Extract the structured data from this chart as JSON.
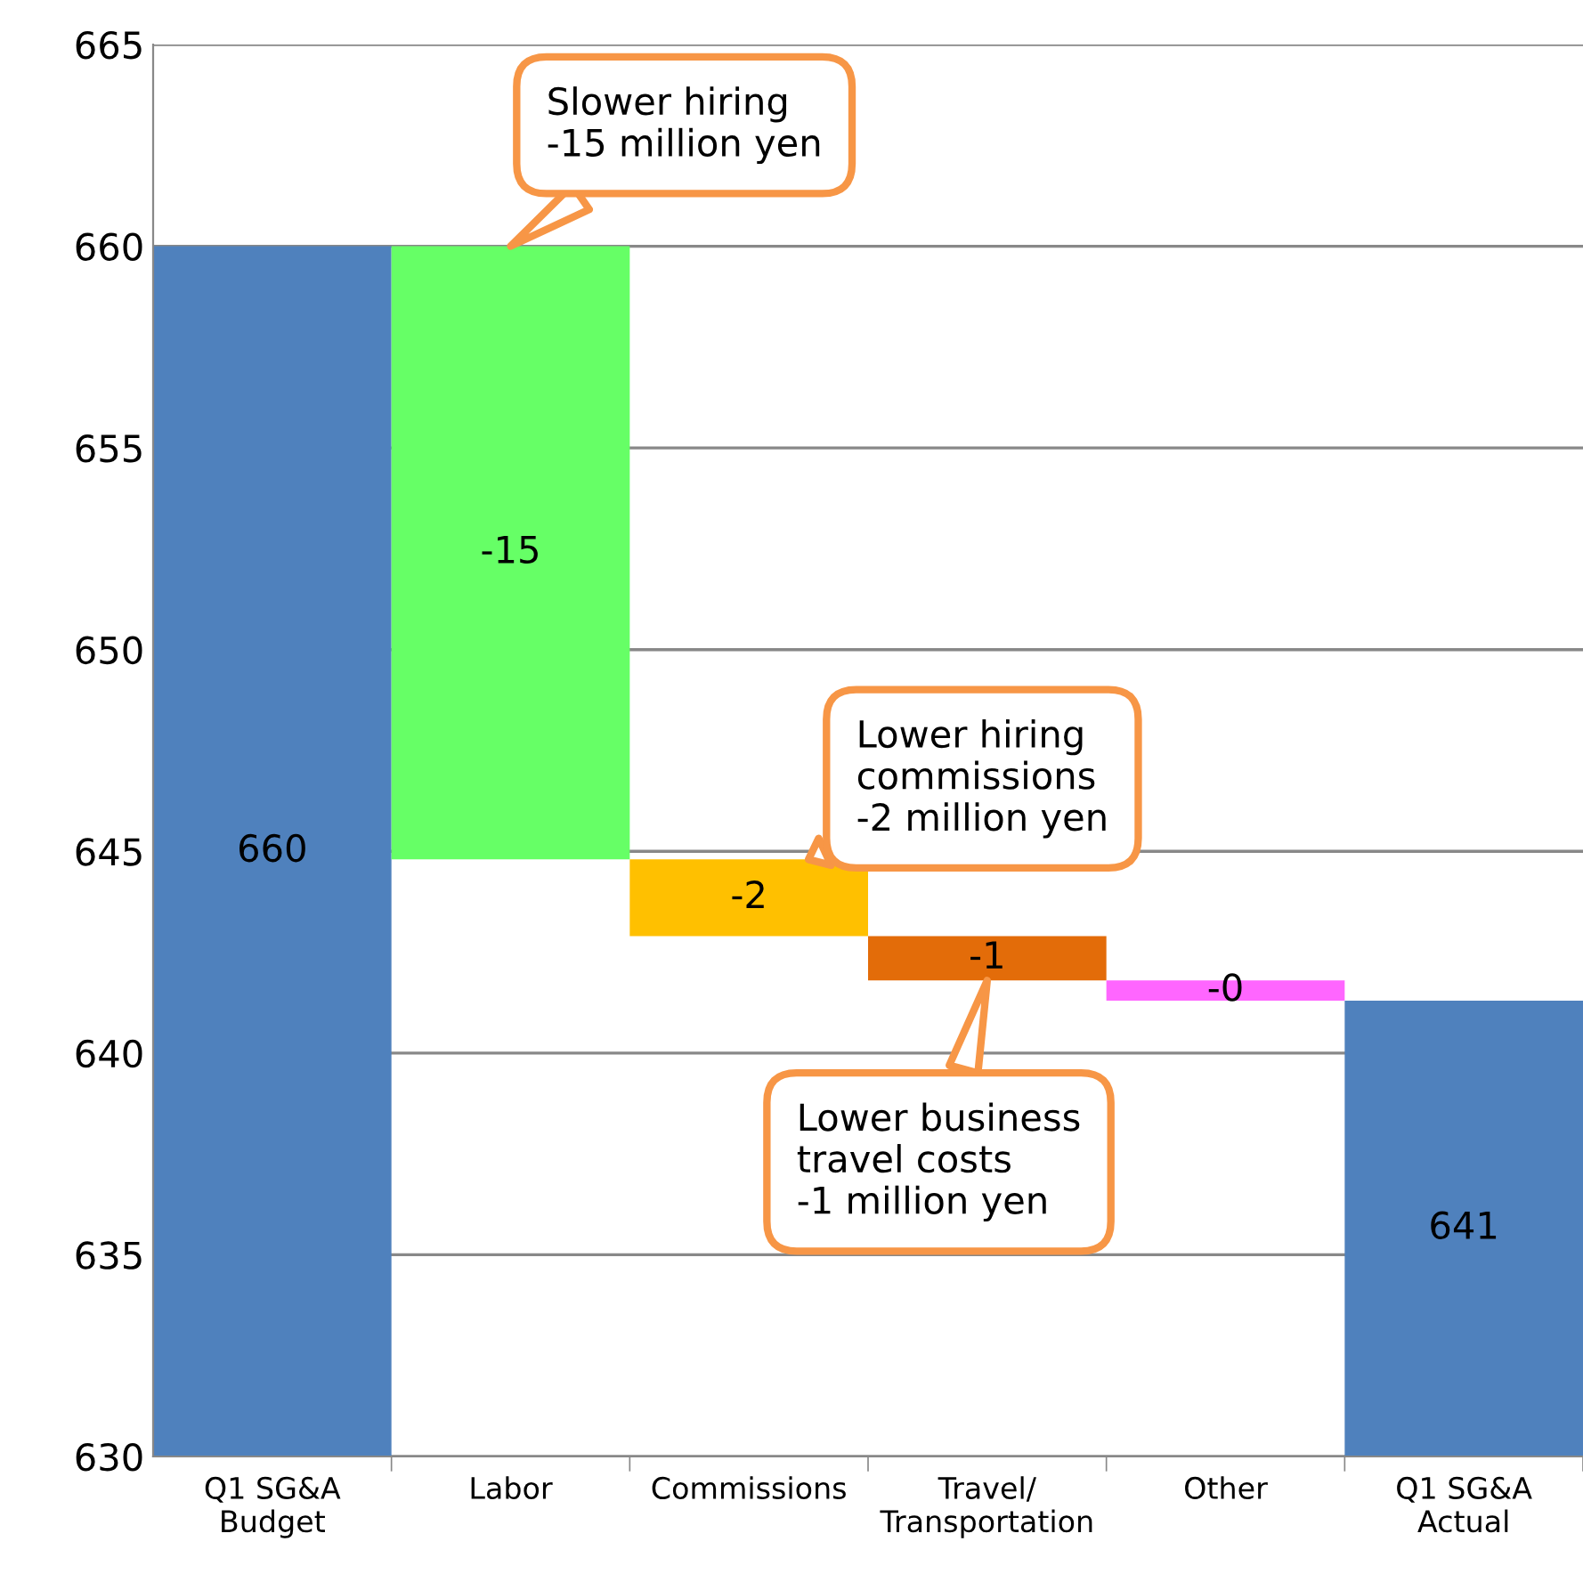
{
  "chart_data": {
    "type": "bar",
    "categories": [
      "Q1 SG&A\nBudget",
      "Labor",
      "Commissions",
      "Travel/\nTransportation",
      "Other",
      "Q1 SG&A\nActual"
    ],
    "values": [
      660,
      -15.2,
      -1.9,
      -1.1,
      -0.5,
      641.3
    ],
    "base": [
      0,
      660,
      644.8,
      642.9,
      641.8,
      0
    ],
    "colors": [
      "#4f81bd",
      "#66ff66",
      "#ffc000",
      "#e36c09",
      "#ff66ff",
      "#4f81bd"
    ],
    "value_labels": [
      "660",
      "-15",
      "-2",
      "-1",
      "-0",
      "641"
    ],
    "ylim": [
      630,
      665
    ],
    "yticks": [
      630,
      635,
      640,
      645,
      650,
      655,
      660,
      665
    ],
    "grid": "y",
    "annotations": [
      {
        "text": "Slower hiring\n-15 million yen",
        "x": "Labor",
        "y": 660
      },
      {
        "text": "Lower hiring\ncommissions\n-2 million yen",
        "x": "Commissions",
        "y": 644.8
      },
      {
        "text": "Lower business\ntravel costs\n-1 million yen",
        "x": "Travel/\nTransportation",
        "y": 641.8
      }
    ]
  }
}
